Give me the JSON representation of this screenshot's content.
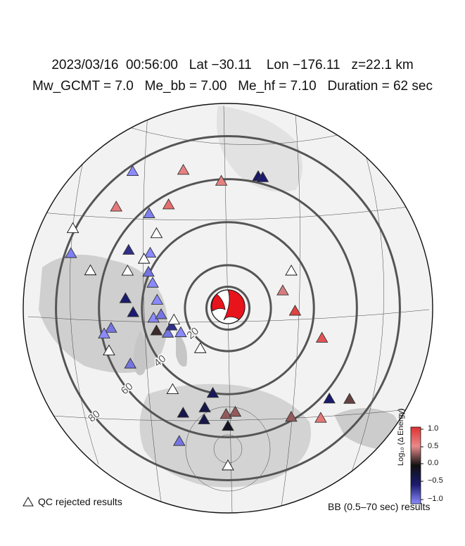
{
  "header": {
    "line1": "2023/03/16  00:56:00   Lat −30.11    Lon −176.11   z=22.1 km",
    "line2": "Mw_GCMT = 7.0   Me_bb = 7.00   Me_hf = 7.10   Duration = 62 sec"
  },
  "map": {
    "distance_labels": [
      "20",
      "40",
      "60",
      "80"
    ],
    "colors": {
      "ring": "#555555",
      "mechanism": "#e8141c",
      "high": "#e03030",
      "low": "#1a1a6e"
    }
  },
  "legend": {
    "qc_rejected": "QC rejected results",
    "band": "BB (0.5–70 sec) results"
  },
  "colorbar": {
    "title": "Log₁₀ (Δ Energy)",
    "ticks": [
      "1.0",
      "0.5",
      "0.0",
      "−0.5",
      "−1.0"
    ],
    "range": [
      -1.0,
      1.0
    ]
  },
  "stations": [
    {
      "az": 357,
      "d": 64,
      "v": 0.55
    },
    {
      "az": 13,
      "d": 68,
      "v": -0.45
    },
    {
      "az": 15,
      "d": 68,
      "v": -0.5
    },
    {
      "az": 342,
      "d": 73,
      "v": 0.55
    },
    {
      "az": 330,
      "d": 60,
      "v": 0.65
    },
    {
      "az": 325,
      "d": 84,
      "v": -1.0
    },
    {
      "az": 320,
      "d": 62,
      "v": -0.95
    },
    {
      "az": 316,
      "d": 52,
      "v": "qc"
    },
    {
      "az": 312,
      "d": 76,
      "v": 0.6
    },
    {
      "az": 305,
      "d": 48,
      "v": -1.0
    },
    {
      "az": 300,
      "d": 58,
      "v": -0.6
    },
    {
      "az": 300,
      "d": 49,
      "v": "qc"
    },
    {
      "az": 297,
      "d": 88,
      "v": "qc"
    },
    {
      "az": 294,
      "d": 44,
      "v": -0.9
    },
    {
      "az": 289,
      "d": 84,
      "v": -0.95
    },
    {
      "az": 288,
      "d": 40,
      "v": -1.0
    },
    {
      "az": 290,
      "d": 54,
      "v": "qc"
    },
    {
      "az": 285,
      "d": 72,
      "v": "qc"
    },
    {
      "az": 276,
      "d": 36,
      "v": -1.0
    },
    {
      "az": 275,
      "d": 52,
      "v": -0.5
    },
    {
      "az": 267,
      "d": 48,
      "v": -0.5
    },
    {
      "az": 262,
      "d": 38,
      "v": -1.0
    },
    {
      "az": 264,
      "d": 34,
      "v": -0.9
    },
    {
      "az": 260,
      "d": 60,
      "v": -0.9
    },
    {
      "az": 258,
      "d": 64,
      "v": -1.0
    },
    {
      "az": 252,
      "d": 38,
      "v": 0.1
    },
    {
      "az": 247,
      "d": 33,
      "v": -0.9
    },
    {
      "az": 252,
      "d": 30,
      "v": -0.6
    },
    {
      "az": 242,
      "d": 27,
      "v": -1.0
    },
    {
      "az": 240,
      "d": 57,
      "v": -0.9
    },
    {
      "az": 257,
      "d": 28,
      "v": "qc"
    },
    {
      "az": 250,
      "d": 64,
      "v": "qc"
    },
    {
      "az": 214,
      "d": 25,
      "v": "qc"
    },
    {
      "az": 60,
      "d": 37,
      "v": "qc"
    },
    {
      "az": 73,
      "d": 29,
      "v": 0.45
    },
    {
      "az": 93,
      "d": 34,
      "v": 0.9
    },
    {
      "az": 108,
      "d": 50,
      "v": 0.8
    },
    {
      "az": 127,
      "d": 77,
      "v": 0.2
    },
    {
      "az": 132,
      "d": 69,
      "v": -0.5
    },
    {
      "az": 140,
      "d": 73,
      "v": 0.6
    },
    {
      "az": 150,
      "d": 64,
      "v": 0.3
    },
    {
      "az": 190,
      "d": 44,
      "v": -0.4
    },
    {
      "az": 192,
      "d": 58,
      "v": -0.3
    },
    {
      "az": 193,
      "d": 52,
      "v": -0.3
    },
    {
      "az": 181,
      "d": 54,
      "v": 0.3
    },
    {
      "az": 176,
      "d": 53,
      "v": 0.3
    },
    {
      "az": 180,
      "d": 60,
      "v": -0.1
    },
    {
      "az": 203,
      "d": 58,
      "v": -0.3
    },
    {
      "az": 214,
      "d": 50,
      "v": "qc"
    },
    {
      "az": 200,
      "d": 72,
      "v": -0.9
    },
    {
      "az": 180,
      "d": 80,
      "v": "qc"
    }
  ]
}
